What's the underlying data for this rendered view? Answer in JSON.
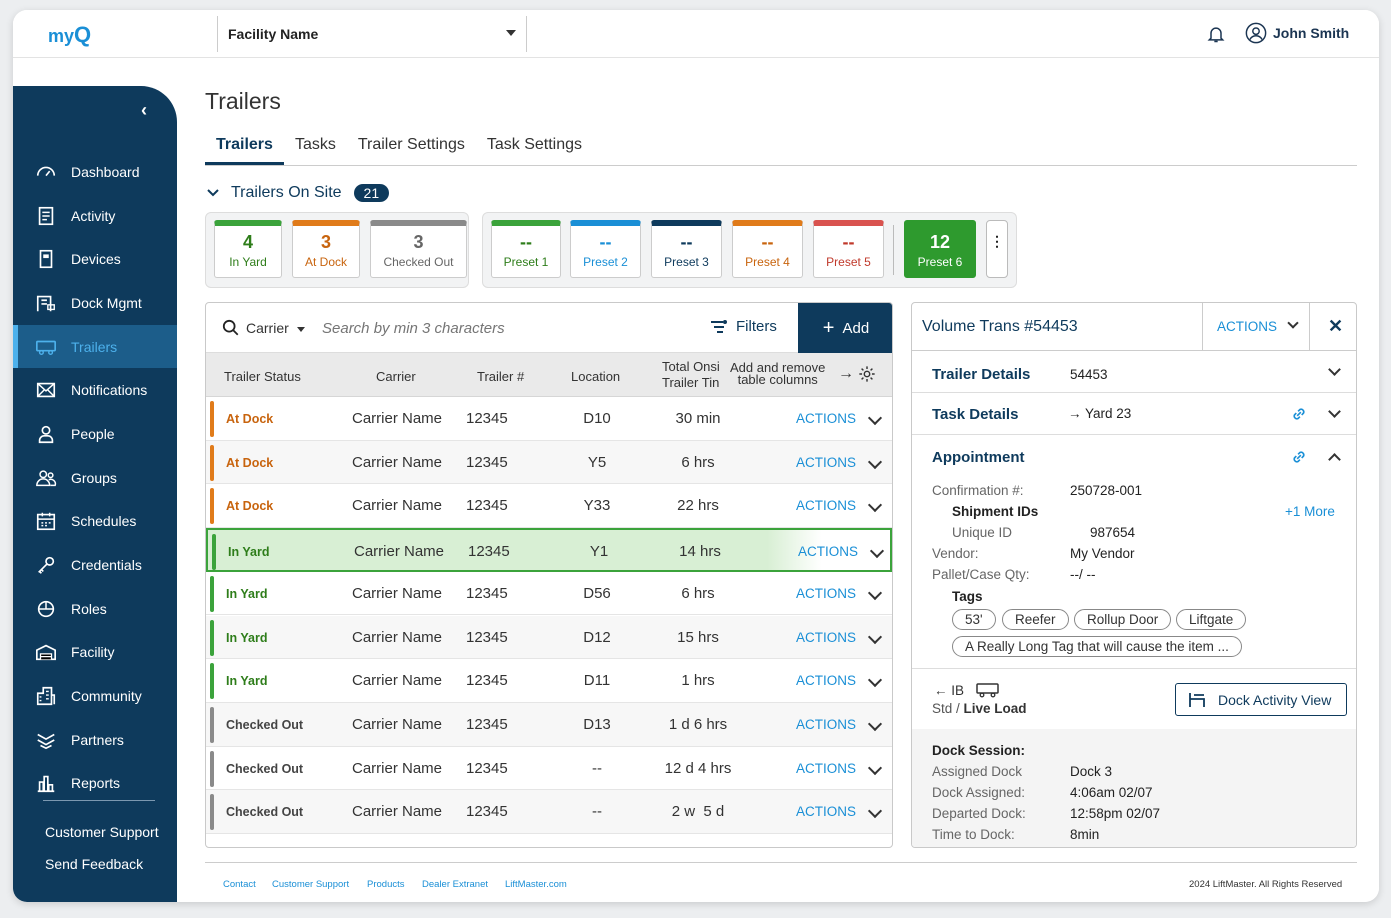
{
  "app": {
    "logo_text": "my",
    "logo_q": "Q",
    "facility": "Facility Name",
    "user": "John Smith"
  },
  "sidebar": {
    "items": [
      {
        "label": "Dashboard",
        "icon": "dashboard-icon"
      },
      {
        "label": "Activity",
        "icon": "activity-icon"
      },
      {
        "label": "Devices",
        "icon": "devices-icon"
      },
      {
        "label": "Dock Mgmt",
        "icon": "dock-icon"
      },
      {
        "label": "Trailers",
        "icon": "trailer-icon",
        "active": true
      },
      {
        "label": "Notifications",
        "icon": "mail-icon"
      },
      {
        "label": "People",
        "icon": "person-icon"
      },
      {
        "label": "Groups",
        "icon": "groups-icon"
      },
      {
        "label": "Schedules",
        "icon": "calendar-icon"
      },
      {
        "label": "Credentials",
        "icon": "key-icon"
      },
      {
        "label": "Roles",
        "icon": "roles-icon"
      },
      {
        "label": "Facility",
        "icon": "facility-icon"
      },
      {
        "label": "Community",
        "icon": "building-icon"
      },
      {
        "label": "Partners",
        "icon": "partners-icon"
      },
      {
        "label": "Reports",
        "icon": "reports-icon"
      }
    ],
    "support": "Customer Support",
    "feedback": "Send Feedback"
  },
  "page": {
    "title": "Trailers",
    "tabs": [
      "Trailers",
      "Tasks",
      "Trailer Settings",
      "Task Settings"
    ],
    "onsite_label": "Trailers On Site",
    "onsite_count": "21"
  },
  "stats": [
    {
      "num": "4",
      "label": "In Yard",
      "color": "#3ba33b",
      "text": "#2e7d1a"
    },
    {
      "num": "3",
      "label": "At Dock",
      "color": "#e07b1a",
      "text": "#c8640e"
    },
    {
      "num": "3",
      "label": "Checked Out",
      "color": "#8a8a8a",
      "text": "#666666"
    }
  ],
  "presets": [
    {
      "num": "--",
      "label": "Preset 1",
      "color": "#3ba33b",
      "text": "#2e7d1a"
    },
    {
      "num": "--",
      "label": "Preset 2",
      "color": "#1a8fd6",
      "text": "#1a8fd6"
    },
    {
      "num": "--",
      "label": "Preset 3",
      "color": "#0e3a5c",
      "text": "#0e3a5c"
    },
    {
      "num": "--",
      "label": "Preset 4",
      "color": "#e07b1a",
      "text": "#c8640e"
    },
    {
      "num": "--",
      "label": "Preset 5",
      "color": "#d9534f",
      "text": "#c0392b"
    },
    {
      "num": "12",
      "label": "Preset 6",
      "color": "#2e9a2e",
      "text": "#ffffff"
    }
  ],
  "search": {
    "selector": "Carrier",
    "placeholder": "Search by min 3 characters",
    "filters": "Filters",
    "add": "Add"
  },
  "columns": {
    "status": "Trailer Status",
    "carrier": "Carrier",
    "trailer": "Trailer #",
    "location": "Location",
    "total_line1": "Total Onsi",
    "total_line2": "Trailer Tin",
    "addremove_line1": "Add and remove",
    "addremove_line2": "table columns"
  },
  "rows": [
    {
      "status": "At Dock",
      "carrier": "Carrier Name",
      "trailer": "12345",
      "location": "D10",
      "total": "30 min",
      "actions": "ACTIONS"
    },
    {
      "status": "At Dock",
      "carrier": "Carrier Name",
      "trailer": "12345",
      "location": "Y5",
      "total": "6 hrs",
      "actions": "ACTIONS"
    },
    {
      "status": "At Dock",
      "carrier": "Carrier Name",
      "trailer": "12345",
      "location": "Y33",
      "total": "22 hrs",
      "actions": "ACTIONS"
    },
    {
      "status": "In Yard",
      "carrier": "Carrier Name",
      "trailer": "12345",
      "location": "Y1",
      "total": "14 hrs",
      "actions": "ACTIONS"
    },
    {
      "status": "In Yard",
      "carrier": "Carrier Name",
      "trailer": "12345",
      "location": "D56",
      "total": "6 hrs",
      "actions": "ACTIONS"
    },
    {
      "status": "In Yard",
      "carrier": "Carrier Name",
      "trailer": "12345",
      "location": "D12",
      "total": "15 hrs",
      "actions": "ACTIONS"
    },
    {
      "status": "In Yard",
      "carrier": "Carrier Name",
      "trailer": "12345",
      "location": "D11",
      "total": "1 hrs",
      "actions": "ACTIONS"
    },
    {
      "status": "Checked Out",
      "carrier": "Carrier Name",
      "trailer": "12345",
      "location": "D13",
      "total": "1 d 6 hrs",
      "actions": "ACTIONS"
    },
    {
      "status": "Checked Out",
      "carrier": "Carrier Name",
      "trailer": "12345",
      "location": "--",
      "total": "12 d 4 hrs",
      "actions": "ACTIONS"
    },
    {
      "status": "Checked Out",
      "carrier": "Carrier Name",
      "trailer": "12345",
      "location": "--",
      "total": "2 w  5 d",
      "actions": "ACTIONS"
    }
  ],
  "status_colors": {
    "At Dock": "#e07b1a",
    "In Yard": "#3ba33b",
    "Checked Out": "#8a8a8a"
  },
  "status_text_colors": {
    "At Dock": "#c8640e",
    "In Yard": "#2e7d1a",
    "Checked Out": "#444444"
  },
  "detail": {
    "title": "Volume Trans #54453",
    "actions": "ACTIONS",
    "trailer_details": "Trailer Details",
    "trailer_id": "54453",
    "task_details": "Task Details",
    "task_dest": "Yard 23",
    "appointment": "Appointment",
    "confirmation_label": "Confirmation #:",
    "confirmation": "250728-001",
    "shipment_ids": "Shipment IDs",
    "more": "+1 More",
    "unique_label": "Unique ID",
    "unique": "987654",
    "vendor_label": "Vendor:",
    "vendor": "My Vendor",
    "pallet_label": "Pallet/Case Qty:",
    "pallet": "--/ --",
    "tags_label": "Tags",
    "tags": [
      "53'",
      "Reefer",
      "Rollup Door",
      "Liftgate",
      "A Really Long Tag that will cause the item ..."
    ],
    "direction": "IB",
    "load_std": "Std /",
    "load_type": "Live Load",
    "dock_view": "Dock Activity View",
    "session_label": "Dock Session:",
    "assigned_dock_label": "Assigned Dock",
    "assigned_dock": "Dock 3",
    "dock_assigned_label": "Dock Assigned:",
    "dock_assigned": "4:06am 02/07",
    "departed_label": "Departed Dock:",
    "departed": "12:58pm 02/07",
    "time_label": "Time to Dock:",
    "time": "8min"
  },
  "footer": {
    "links": [
      "Contact",
      "Customer Support",
      "Products",
      "Dealer Extranet",
      "LiftMaster.com"
    ],
    "copyright": "2024 LiftMaster. All Rights Reserved"
  }
}
